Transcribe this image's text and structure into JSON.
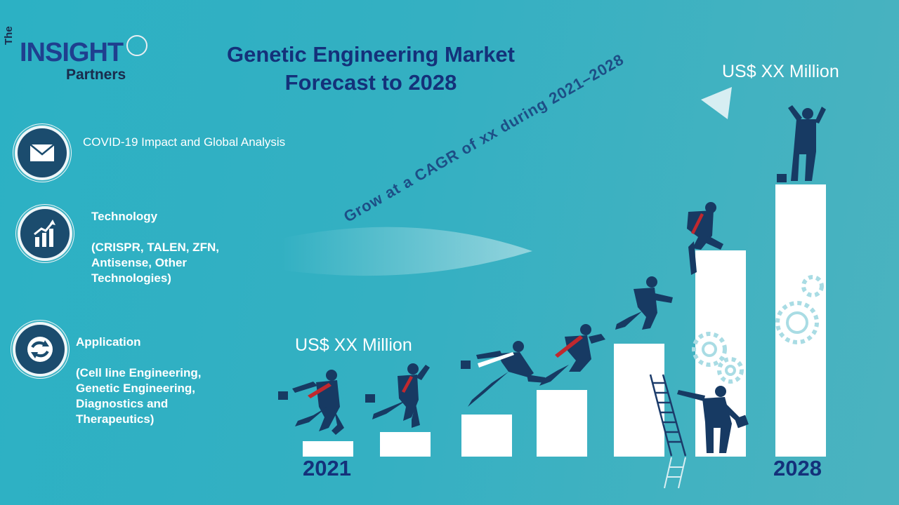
{
  "logo": {
    "the": "The",
    "insight": "INSIGHT",
    "partners": "Partners"
  },
  "title": {
    "line1": "Genetic Engineering Market",
    "line2": "Forecast to 2028"
  },
  "categories": [
    {
      "title": "COVID-19 Impact and Global Analysis",
      "icon": "envelope-icon"
    },
    {
      "title": "Technology",
      "detail": [
        "(CRISPR, TALEN, ZFN,",
        "Antisense, Other",
        "Technologies)"
      ],
      "icon": "growth-chart-icon"
    },
    {
      "title": "Application",
      "detail": [
        "(Cell line Engineering,",
        "Genetic Engineering,",
        "Diagnostics and",
        "Therapeutics)"
      ],
      "icon": "cycle-arrows-icon"
    }
  ],
  "chart": {
    "start_value": "US$ XX Million",
    "end_value": "US$ XX Million",
    "start_year": "2021",
    "end_year": "2028",
    "cagr_text": "Grow at a CAGR of xx during 2021–2028"
  },
  "colors": {
    "navy": "#14317a",
    "accent": "#34b0c2",
    "icon_bg": "#1b4c6e",
    "tie_red": "#c0282e"
  }
}
